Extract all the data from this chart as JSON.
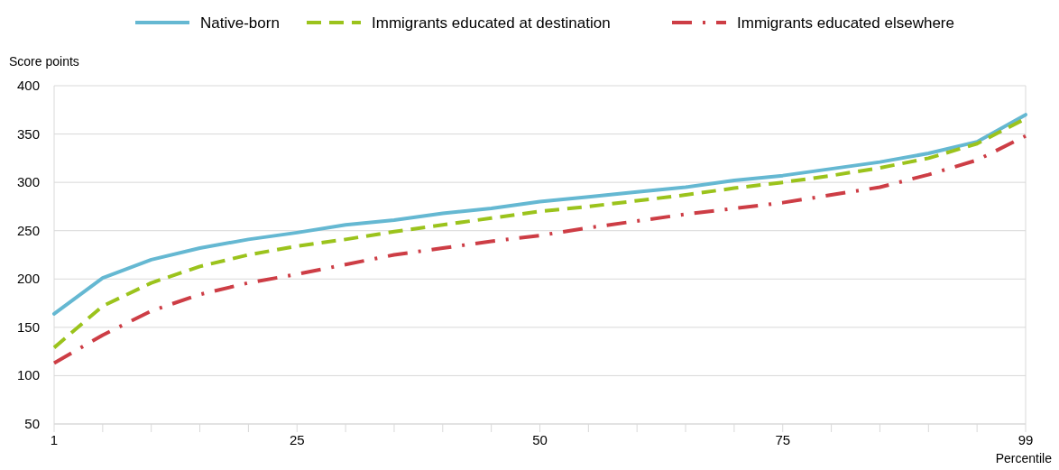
{
  "chart_data": {
    "type": "line",
    "ylabel": "Score points",
    "xlabel": "Percentile",
    "categories": [
      "1",
      null,
      null,
      null,
      null,
      "25",
      null,
      null,
      null,
      null,
      "50",
      null,
      null,
      null,
      null,
      "75",
      null,
      null,
      null,
      null,
      "99"
    ],
    "ylim": [
      50,
      400
    ],
    "yticks": [
      50,
      100,
      150,
      200,
      250,
      300,
      350,
      400
    ],
    "grid": "y",
    "legend": "top",
    "series": [
      {
        "name": "Native-born",
        "color": "#65b8d2",
        "line_style": "solid",
        "values": [
          164,
          201,
          220,
          232,
          241,
          248,
          256,
          261,
          268,
          273,
          280,
          285,
          290,
          295,
          302,
          307,
          314,
          321,
          330,
          342,
          370
        ]
      },
      {
        "name": "Immigrants educated at destination",
        "color": "#9bc31c",
        "line_style": "dashed",
        "values": [
          129,
          172,
          196,
          213,
          225,
          234,
          241,
          249,
          256,
          263,
          270,
          275,
          281,
          287,
          294,
          300,
          307,
          315,
          325,
          340,
          366
        ]
      },
      {
        "name": "Immigrants educated elsewhere",
        "color": "#cd3d45",
        "line_style": "dashdot",
        "values": [
          113,
          142,
          167,
          184,
          196,
          205,
          215,
          225,
          232,
          239,
          245,
          253,
          260,
          267,
          273,
          279,
          287,
          295,
          308,
          323,
          348
        ]
      }
    ]
  }
}
